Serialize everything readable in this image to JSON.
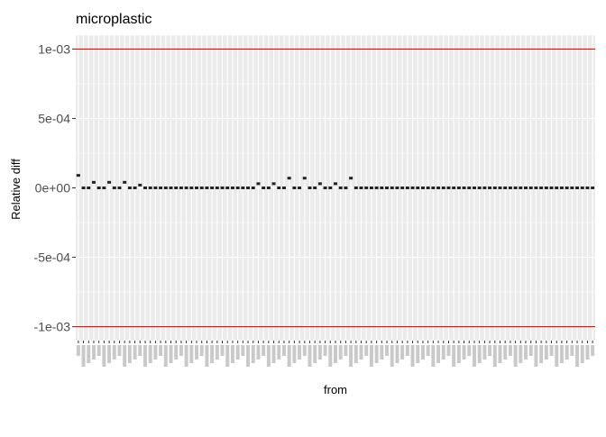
{
  "chart_data": {
    "type": "scatter",
    "title": "microplastic",
    "xlabel": "from",
    "ylabel": "Relative diff",
    "ylim": [
      -0.0011,
      0.0011
    ],
    "y_ticks": [
      0.001,
      0.0005,
      0,
      -0.0005,
      -0.001
    ],
    "y_tick_labels": [
      "1e-03",
      "5e-04",
      "0e+00",
      "-5e-04",
      "-1e-03"
    ],
    "reference_lines": [
      0.001,
      -0.001
    ],
    "reference_line_color": "#ff0000",
    "point_color": "#222222",
    "panel_background": "#ebebeb",
    "grid_color": "#ffffff",
    "n_categories": 101,
    "values": [
      9e-05,
      0,
      0,
      4e-05,
      0,
      0,
      4e-05,
      0,
      0,
      4e-05,
      0,
      0,
      2e-05,
      0,
      0,
      0,
      0,
      0,
      0,
      0,
      0,
      0,
      0,
      0,
      0,
      0,
      0,
      0,
      0,
      0,
      0,
      0,
      0,
      0,
      0,
      3e-05,
      0,
      0,
      3e-05,
      0,
      0,
      7e-05,
      0,
      0,
      7e-05,
      0,
      0,
      3e-05,
      0,
      0,
      3e-05,
      0,
      0,
      7e-05,
      0,
      0,
      0,
      0,
      0,
      0,
      0,
      0,
      0,
      0,
      0,
      0,
      0,
      0,
      0,
      0,
      0,
      0,
      0,
      0,
      0,
      0,
      0,
      0,
      0,
      0,
      0,
      0,
      0,
      0,
      0,
      0,
      0,
      0,
      0,
      0,
      0,
      0,
      0,
      0,
      0,
      0,
      0,
      0,
      0,
      0,
      0
    ]
  }
}
